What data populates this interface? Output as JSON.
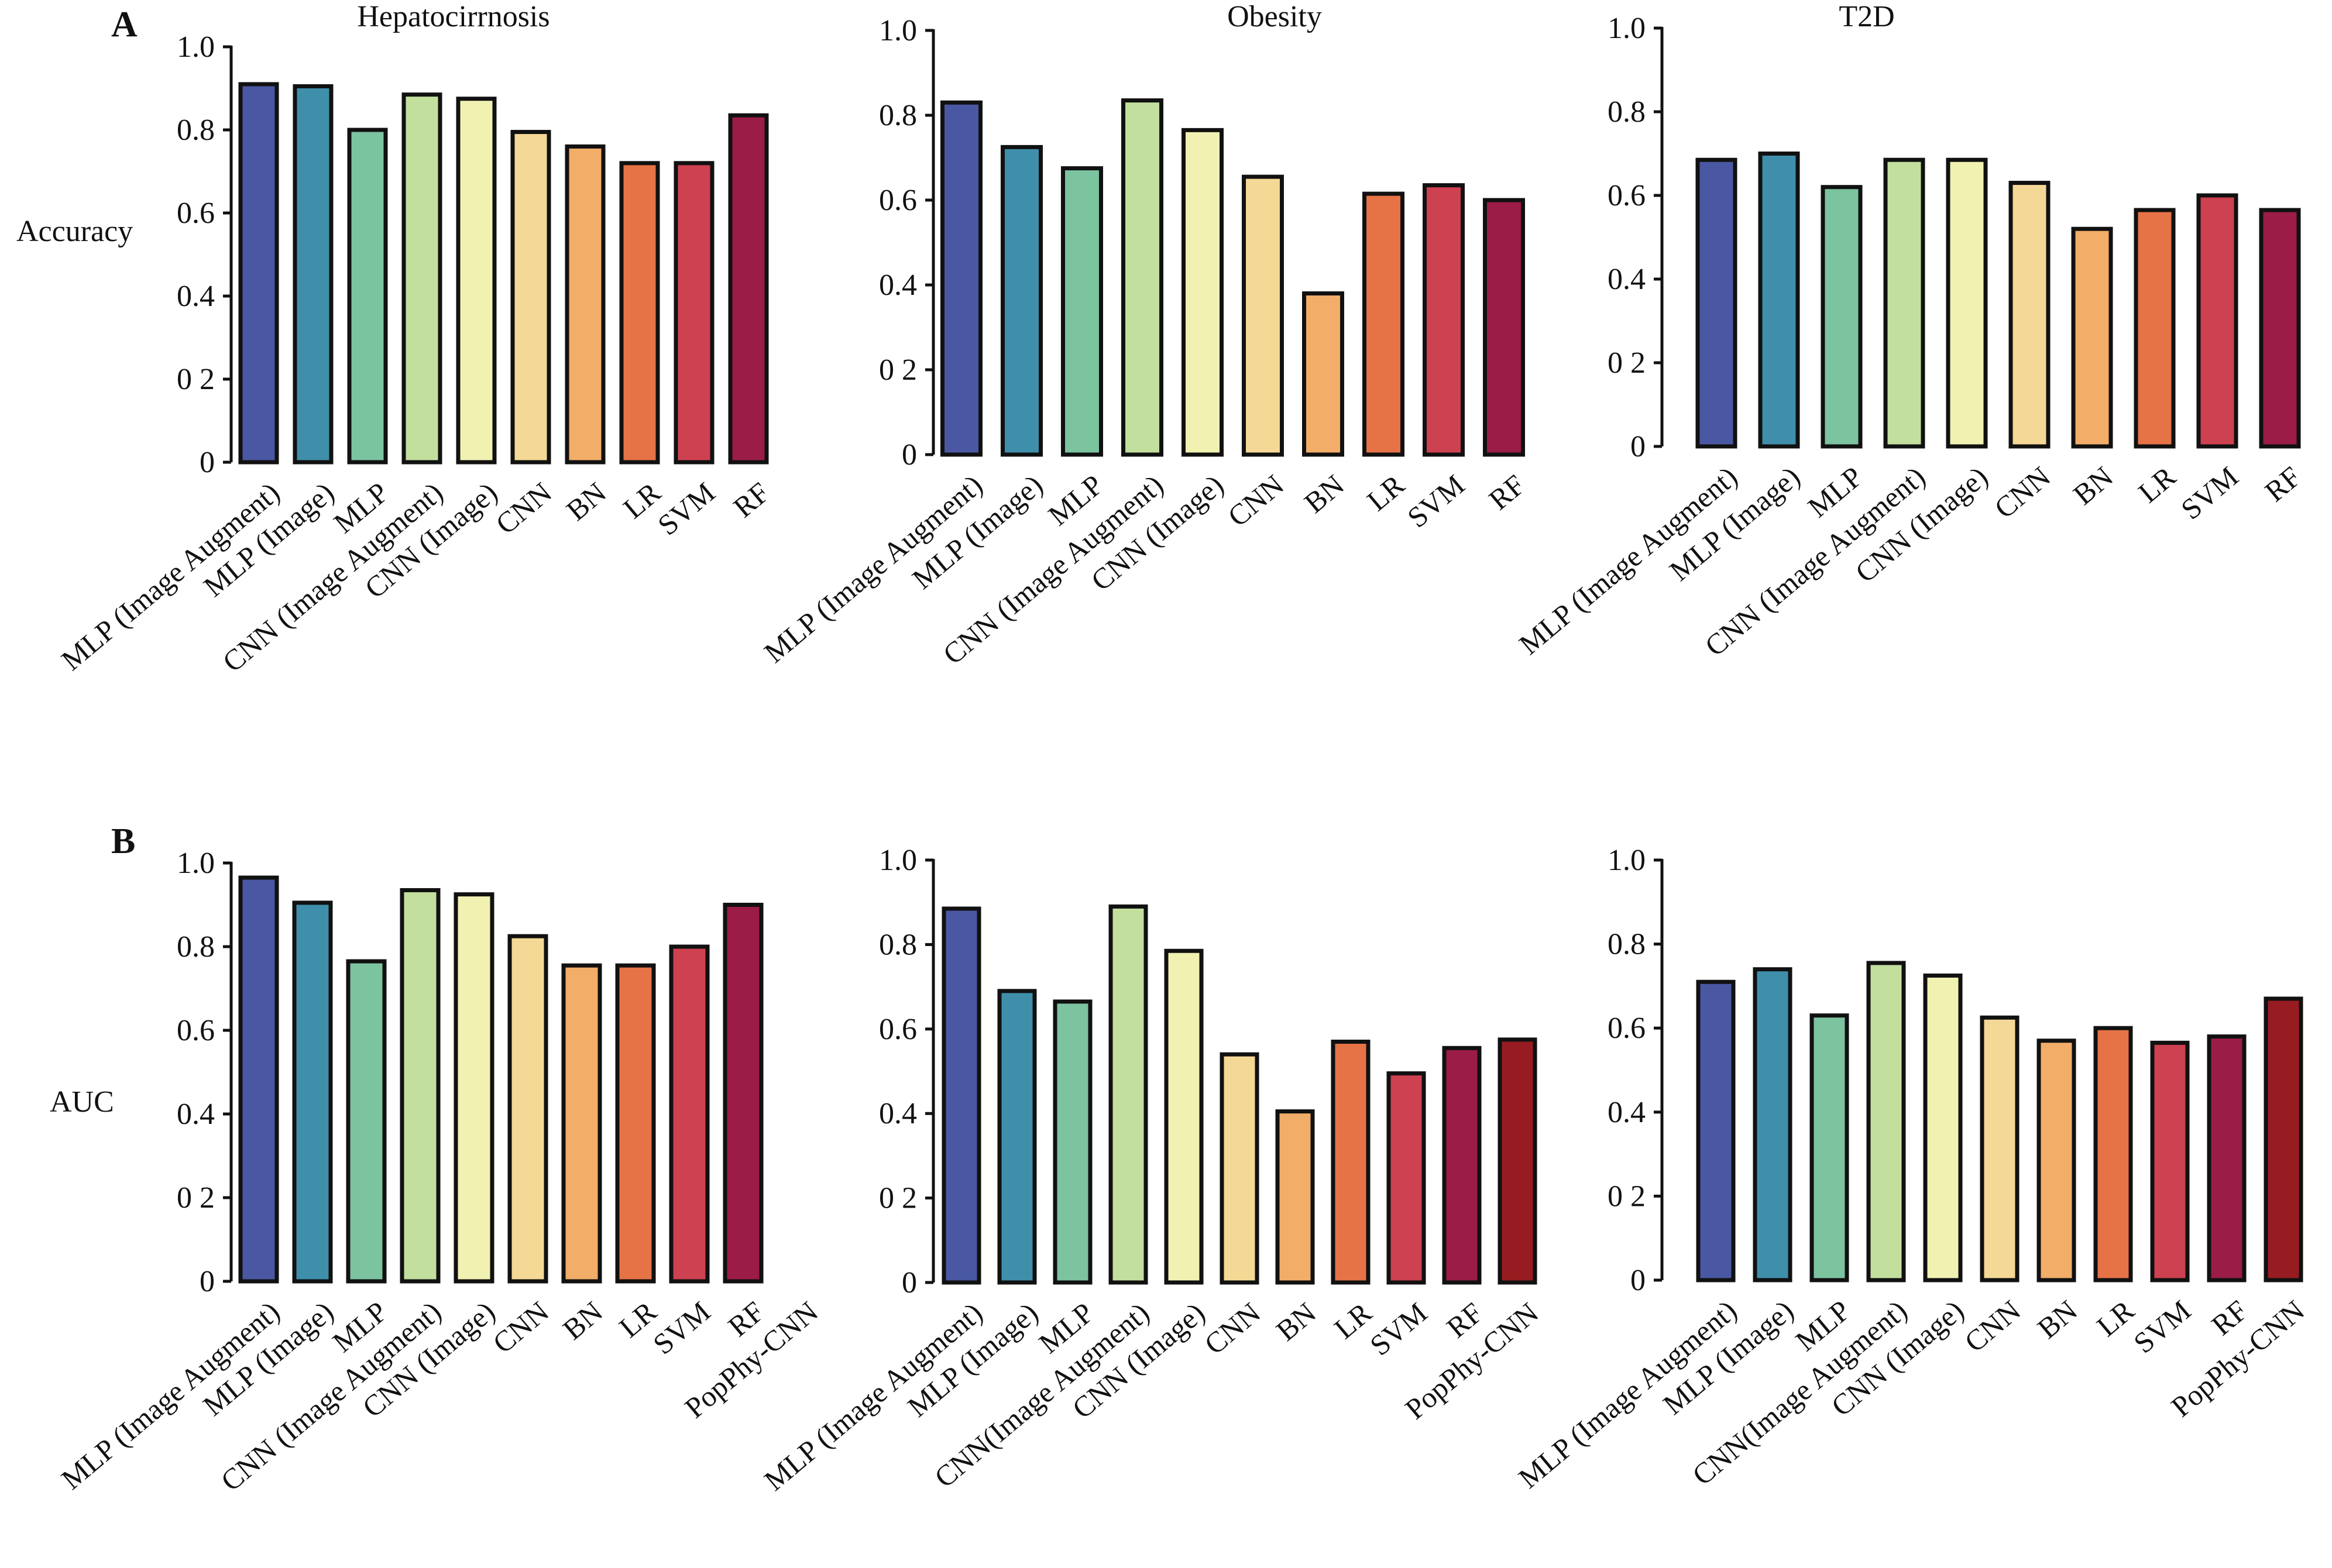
{
  "colors": {
    "MLP (Image Augment)": "#4a58a3",
    "MLP (Image)": "#3f8fab",
    "MLP": "#7cc3a0",
    "CNN (Image Augment)": "#c2df9e",
    "CNN (Image)": "#f1f1b2",
    "CNN": "#f4d895",
    "BN": "#f2ad68",
    "LR": "#e57346",
    "SVM": "#cd4150",
    "RF": "#9a1c47",
    "PopPhy-CNN": "#971c21"
  },
  "panels": [
    {
      "letter": "A",
      "row": 0
    },
    {
      "letter": "B",
      "row": 1
    }
  ],
  "row_labels": [
    "Accuracy",
    "AUC"
  ],
  "chart_data": [
    {
      "type": "bar",
      "title": "Hepatocirrnosis",
      "ylabel": "Accuracy",
      "ylim": [
        0,
        1.0
      ],
      "yticks": [
        "0",
        "0 2",
        "0.4",
        "0.6",
        "0.8",
        "1.0"
      ],
      "categories": [
        "MLP (Image Augment)",
        "MLP (Image)",
        "MLP",
        "CNN (Image Augment)",
        "CNN (Image)",
        "CNN",
        "BN",
        "LR",
        "SVM",
        "RF"
      ],
      "series_keys": [
        "MLP (Image Augment)",
        "MLP (Image)",
        "MLP",
        "CNN (Image Augment)",
        "CNN (Image)",
        "CNN",
        "BN",
        "LR",
        "SVM",
        "RF"
      ],
      "values": [
        0.91,
        0.905,
        0.8,
        0.885,
        0.875,
        0.795,
        0.76,
        0.72,
        0.72,
        0.835
      ]
    },
    {
      "type": "bar",
      "title": "Obesity",
      "ylim": [
        0,
        1.0
      ],
      "yticks": [
        "0",
        "0 2",
        "0.4",
        "0.6",
        "0.8",
        "1.0"
      ],
      "categories": [
        "MLP (Image Augment)",
        "MLP (Image)",
        "MLP",
        "CNN (Image Augment)",
        "CNN (Image)",
        "CNN",
        "BN",
        "LR",
        "SVM",
        "RF"
      ],
      "series_keys": [
        "MLP (Image Augment)",
        "MLP (Image)",
        "MLP",
        "CNN (Image Augment)",
        "CNN (Image)",
        "CNN",
        "BN",
        "LR",
        "SVM",
        "RF"
      ],
      "values": [
        0.83,
        0.725,
        0.675,
        0.835,
        0.765,
        0.655,
        0.38,
        0.615,
        0.635,
        0.6
      ]
    },
    {
      "type": "bar",
      "title": "T2D",
      "ylim": [
        0,
        1.0
      ],
      "yticks": [
        "0",
        "0 2",
        "0.4",
        "0.6",
        "0.8",
        "1.0"
      ],
      "categories": [
        "MLP (Image Augment)",
        "MLP (Image)",
        "MLP",
        "CNN (Image Augment)",
        "CNN (Image)",
        "CNN",
        "BN",
        "LR",
        "SVM",
        "RF"
      ],
      "series_keys": [
        "MLP (Image Augment)",
        "MLP (Image)",
        "MLP",
        "CNN (Image Augment)",
        "CNN (Image)",
        "CNN",
        "BN",
        "LR",
        "SVM",
        "RF"
      ],
      "values": [
        0.685,
        0.7,
        0.62,
        0.685,
        0.685,
        0.63,
        0.52,
        0.565,
        0.6,
        0.565
      ]
    },
    {
      "type": "bar",
      "title": "",
      "ylabel": "AUC",
      "ylim": [
        0,
        1.0
      ],
      "yticks": [
        "0",
        "0 2",
        "0.4",
        "0.6",
        "0.8",
        "1.0"
      ],
      "categories": [
        "MLP (Image Augment)",
        "MLP (Image)",
        "MLP",
        "CNN (Image Augment)",
        "CNN (Image)",
        "CNN",
        "BN",
        "LR",
        "SVM",
        "RF",
        "PopPhy-CNN"
      ],
      "series_keys": [
        "MLP (Image Augment)",
        "MLP (Image)",
        "MLP",
        "CNN (Image Augment)",
        "CNN (Image)",
        "CNN",
        "BN",
        "LR",
        "SVM",
        "RF",
        "PopPhy-CNN"
      ],
      "values": [
        0.965,
        0.905,
        0.765,
        0.935,
        0.925,
        0.825,
        0.755,
        0.755,
        0.8,
        0.9,
        null
      ]
    },
    {
      "type": "bar",
      "title": "",
      "ylim": [
        0,
        1.0
      ],
      "yticks": [
        "0",
        "0 2",
        "0.4",
        "0.6",
        "0.8",
        "1.0"
      ],
      "categories": [
        "MLP (Image Augment)",
        "MLP (Image)",
        "MLP",
        "CNN(Image Augment)",
        "CNN (Image)",
        "CNN",
        "BN",
        "LR",
        "SVM",
        "RF",
        "PopPhy-CNN"
      ],
      "series_keys": [
        "MLP (Image Augment)",
        "MLP (Image)",
        "MLP",
        "CNN (Image Augment)",
        "CNN (Image)",
        "CNN",
        "BN",
        "LR",
        "SVM",
        "RF",
        "PopPhy-CNN"
      ],
      "values": [
        0.885,
        0.69,
        0.665,
        0.89,
        0.785,
        0.54,
        0.405,
        0.57,
        0.495,
        0.555,
        0.575
      ]
    },
    {
      "type": "bar",
      "title": "",
      "ylim": [
        0,
        1.0
      ],
      "yticks": [
        "0",
        "0 2",
        "0.4",
        "0.6",
        "0.8",
        "1.0"
      ],
      "categories": [
        "MLP (Image Augment)",
        "MLP (Image)",
        "MLP",
        "CNN(Image Augment)",
        "CNN (Image)",
        "CNN",
        "BN",
        "LR",
        "SVM",
        "RF",
        "PopPhy-CNN"
      ],
      "series_keys": [
        "MLP (Image Augment)",
        "MLP (Image)",
        "MLP",
        "CNN (Image Augment)",
        "CNN (Image)",
        "CNN",
        "BN",
        "LR",
        "SVM",
        "RF",
        "PopPhy-CNN"
      ],
      "values": [
        0.71,
        0.74,
        0.63,
        0.755,
        0.725,
        0.625,
        0.57,
        0.6,
        0.565,
        0.58,
        0.67
      ]
    }
  ]
}
